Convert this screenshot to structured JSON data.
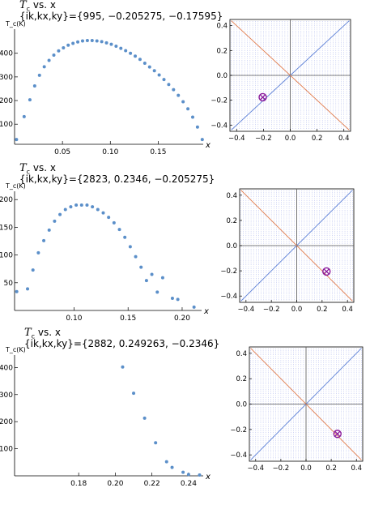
{
  "colors": {
    "points": "#5b8fc9",
    "diag_main": "#5b7fd6",
    "diag_anti": "#e07a4a",
    "grid_dots": "#9aa6e8",
    "marker": "#8b1a9b",
    "axis": "#000000"
  },
  "chart_data": [
    {
      "type": "scatter",
      "title_main": "T",
      "title_sub": "c",
      "title_rest": " vs. x",
      "info": "{ik,kx,ky}={995, −0.205275, −0.17595}",
      "ylabel": "T_c(K)",
      "xlabel": "x",
      "xlim": [
        0.0,
        0.197
      ],
      "ylim": [
        15,
        495
      ],
      "xticks": [
        0.05,
        0.1,
        0.15
      ],
      "xtick_labels": [
        "0.05",
        "0.10",
        "0.15"
      ],
      "yticks": [
        100,
        200,
        300,
        400
      ],
      "ytick_labels": [
        "100",
        "200",
        "300",
        "400"
      ],
      "x": [
        0.002,
        0.01,
        0.016,
        0.021,
        0.026,
        0.031,
        0.036,
        0.041,
        0.046,
        0.051,
        0.056,
        0.061,
        0.066,
        0.071,
        0.076,
        0.081,
        0.086,
        0.091,
        0.096,
        0.101,
        0.106,
        0.111,
        0.116,
        0.121,
        0.126,
        0.131,
        0.136,
        0.141,
        0.146,
        0.151,
        0.156,
        0.161,
        0.166,
        0.171,
        0.176,
        0.181,
        0.186,
        0.191,
        0.196
      ],
      "y": [
        35,
        132,
        203,
        262,
        307,
        343,
        370,
        392,
        410,
        423,
        434,
        442,
        448,
        452,
        454,
        454,
        452,
        449,
        444,
        438,
        430,
        421,
        411,
        400,
        388,
        374,
        358,
        342,
        326,
        308,
        289,
        268,
        246,
        222,
        195,
        165,
        130,
        88,
        35
      ]
    },
    {
      "type": "scatter",
      "title_main": "T",
      "title_sub": "c",
      "title_rest": " vs. x",
      "info": "{ik,kx,ky}={2823, 0.2346, −0.205275}",
      "ylabel": "T_c(K)",
      "xlabel": "x",
      "xlim": [
        0.045,
        0.218
      ],
      "ylim": [
        0,
        212
      ],
      "xticks": [
        0.1,
        0.15,
        0.2
      ],
      "xtick_labels": [
        "0.10",
        "0.15",
        "0.20"
      ],
      "yticks": [
        50,
        100,
        150,
        200
      ],
      "ytick_labels": [
        "50",
        "100",
        "150",
        "200"
      ],
      "x": [
        0.047,
        0.057,
        0.062,
        0.067,
        0.072,
        0.077,
        0.082,
        0.087,
        0.092,
        0.097,
        0.102,
        0.107,
        0.112,
        0.117,
        0.122,
        0.127,
        0.132,
        0.137,
        0.142,
        0.147,
        0.152,
        0.157,
        0.162,
        0.167,
        0.172,
        0.177,
        0.182,
        0.191,
        0.196,
        0.211
      ],
      "y": [
        34,
        39,
        73,
        104,
        126,
        145,
        161,
        173,
        182,
        187,
        190,
        190,
        190,
        187,
        182,
        176,
        168,
        158,
        146,
        132,
        115,
        97,
        78,
        54,
        65,
        33,
        59,
        22,
        20,
        6
      ]
    },
    {
      "type": "scatter",
      "title_main": "T",
      "title_sub": "c",
      "title_rest": " vs. x",
      "info": "{ik,kx,ky}={2882, 0.249263, −0.2346}",
      "ylabel": "T_c(K)",
      "xlabel": "x",
      "xlim": [
        0.145,
        0.248
      ],
      "ylim": [
        0,
        440
      ],
      "xticks": [
        0.18,
        0.2,
        0.22,
        0.24
      ],
      "xtick_labels": [
        "0.18",
        "0.20",
        "0.22",
        "0.24"
      ],
      "yticks": [
        100,
        200,
        300,
        400
      ],
      "ytick_labels": [
        "100",
        "200",
        "300",
        "400"
      ],
      "x": [
        0.204,
        0.21,
        0.216,
        0.222,
        0.228,
        0.231,
        0.237,
        0.24,
        0.246
      ],
      "y": [
        402,
        305,
        213,
        122,
        52,
        31,
        13,
        5,
        3
      ]
    },
    {
      "type": "scatter",
      "title": "",
      "xlim": [
        -0.45,
        0.45
      ],
      "ylim": [
        -0.45,
        0.45
      ],
      "xticks": [
        -0.4,
        -0.2,
        0.0,
        0.2,
        0.4
      ],
      "xtick_labels": [
        "−0.4",
        "−0.2",
        "0.0",
        "0.2",
        "0.4"
      ],
      "yticks": [
        -0.4,
        -0.2,
        0.0,
        0.2,
        0.4
      ],
      "ytick_labels": [
        "−0.4",
        "−0.2",
        "0.0",
        "0.2",
        "0.4"
      ],
      "diagonals": [
        "y = x",
        "y = −x"
      ],
      "marker": {
        "x": -0.205275,
        "y": -0.17595
      }
    },
    {
      "type": "scatter",
      "title": "",
      "xlim": [
        -0.45,
        0.45
      ],
      "ylim": [
        -0.45,
        0.45
      ],
      "xticks": [
        -0.4,
        -0.2,
        0.0,
        0.2,
        0.4
      ],
      "xtick_labels": [
        "−0.4",
        "−0.2",
        "0.0",
        "0.2",
        "0.4"
      ],
      "yticks": [
        -0.4,
        -0.2,
        0.0,
        0.2,
        0.4
      ],
      "ytick_labels": [
        "−0.4",
        "−0.2",
        "0.0",
        "0.2",
        "0.4"
      ],
      "diagonals": [
        "y = x",
        "y = −x"
      ],
      "marker": {
        "x": 0.2346,
        "y": -0.205275
      }
    },
    {
      "type": "scatter",
      "title": "",
      "xlim": [
        -0.45,
        0.45
      ],
      "ylim": [
        -0.45,
        0.45
      ],
      "xticks": [
        -0.4,
        -0.2,
        0.0,
        0.2,
        0.4
      ],
      "xtick_labels": [
        "−0.4",
        "−0.2",
        "0.0",
        "0.2",
        "0.4"
      ],
      "yticks": [
        -0.4,
        -0.2,
        0.0,
        0.2,
        0.4
      ],
      "ytick_labels": [
        "−0.4",
        "−0.2",
        "0.0",
        "0.2",
        "0.4"
      ],
      "diagonals": [
        "y = x",
        "y = −x"
      ],
      "marker": {
        "x": 0.249263,
        "y": -0.2346
      }
    }
  ]
}
